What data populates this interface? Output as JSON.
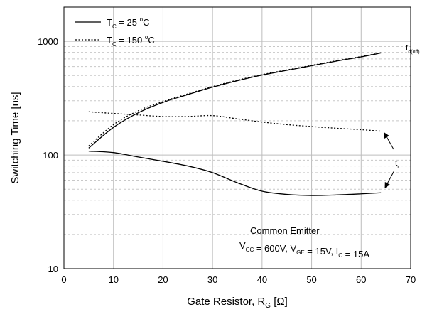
{
  "chart_data": {
    "type": "line",
    "xlabel": {
      "main": "Gate Resistor, R",
      "sub": "G",
      "unit": " [Ω]"
    },
    "ylabel": "Switching Time [ns]",
    "xlim": [
      0,
      70
    ],
    "ylim": [
      10,
      2000
    ],
    "yscale": "log",
    "grid": true,
    "xticks": [
      0,
      10,
      20,
      30,
      40,
      50,
      60,
      70
    ],
    "yticks": [
      10,
      100,
      1000
    ],
    "legend_position": "top-left",
    "series": [
      {
        "name": "T_C = 25 °C",
        "style": "solid",
        "group": "td(off)",
        "x": [
          5,
          10,
          15,
          20,
          25,
          30,
          35,
          40,
          45,
          50,
          55,
          60,
          64
        ],
        "values": [
          115,
          175,
          235,
          290,
          340,
          395,
          450,
          505,
          555,
          610,
          670,
          730,
          790
        ]
      },
      {
        "name": "T_C = 150 °C",
        "style": "dotted",
        "group": "td(off)",
        "x": [
          5,
          10,
          15,
          20,
          25,
          30,
          35,
          40,
          45,
          50,
          55,
          60,
          64
        ],
        "values": [
          120,
          185,
          245,
          295,
          345,
          400,
          455,
          510,
          560,
          615,
          675,
          735,
          795
        ]
      },
      {
        "name": "T_C = 25 °C",
        "style": "solid",
        "group": "tr",
        "x": [
          5,
          10,
          15,
          20,
          25,
          30,
          35,
          40,
          45,
          50,
          55,
          60,
          64
        ],
        "values": [
          108,
          105,
          96,
          88,
          80,
          70,
          57,
          48,
          45,
          44,
          44.5,
          45.5,
          46.5
        ]
      },
      {
        "name": "T_C = 150 °C",
        "style": "dotted",
        "group": "tr",
        "x": [
          5,
          10,
          15,
          20,
          25,
          30,
          35,
          40,
          45,
          50,
          55,
          60,
          64
        ],
        "values": [
          240,
          232,
          225,
          218,
          218,
          222,
          208,
          195,
          185,
          178,
          172,
          167,
          162
        ]
      }
    ],
    "legend": [
      {
        "prefix": "T",
        "sub": "C",
        "middle": " = 25 ",
        "sup": "o",
        "suffix": "C",
        "style": "solid"
      },
      {
        "prefix": "T",
        "sub": "C",
        "middle": " = 150 ",
        "sup": "o",
        "suffix": "C",
        "style": "dotted"
      }
    ],
    "annotations": {
      "tdoff": {
        "main": "t",
        "sub": "d(off)"
      },
      "tr": {
        "main": "t",
        "sub": "r"
      },
      "condition_line1": "Common Emitter",
      "condition_line2": [
        {
          "t": "V"
        },
        {
          "t": "CC",
          "sub": true
        },
        {
          "t": " = 600V, V"
        },
        {
          "t": "GE",
          "sub": true
        },
        {
          "t": " = 15V, I"
        },
        {
          "t": "C",
          "sub": true
        },
        {
          "t": " = 15A"
        }
      ]
    }
  }
}
